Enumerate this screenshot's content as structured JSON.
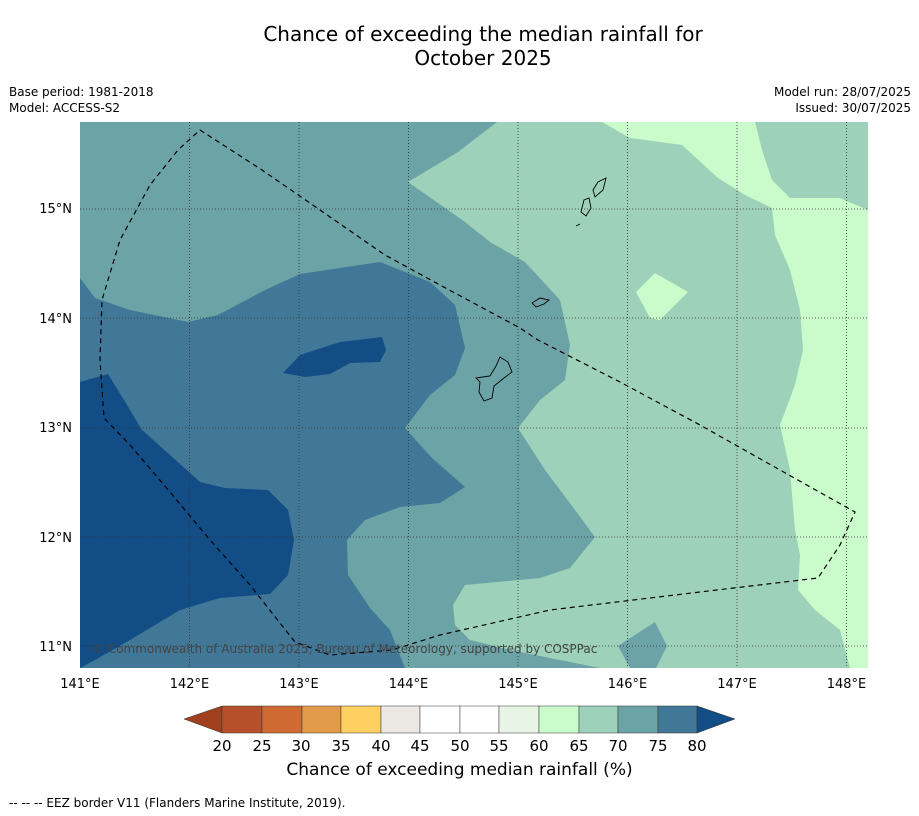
{
  "title_line1": "Chance of exceeding the median rainfall for",
  "title_line2": "October 2025",
  "meta_left": {
    "base_period": "Base period: 1981-2018",
    "model": "Model: ACCESS-S2"
  },
  "meta_right": {
    "model_run": "Model run: 28/07/2025",
    "issued": "Issued: 30/07/2025"
  },
  "map": {
    "lon_ticks": [
      "141°E",
      "142°E",
      "143°E",
      "144°E",
      "145°E",
      "146°E",
      "147°E",
      "148°E"
    ],
    "lat_ticks": [
      "15°N",
      "14°N",
      "13°N",
      "12°N",
      "11°N"
    ],
    "copyright": "© Commonwealth of Australia 2025, Bureau of Meteorology, supported by COSPPac"
  },
  "colorbar": {
    "title": "Chance of exceeding median rainfall (%)",
    "ticks": [
      "20",
      "25",
      "30",
      "35",
      "40",
      "45",
      "50",
      "55",
      "60",
      "65",
      "70",
      "75",
      "80"
    ],
    "colors": {
      "below20": "#a0401f",
      "c20_25": "#b5502a",
      "c25_30": "#d06a33",
      "c30_35": "#e39a4a",
      "c35_40": "#fdd060",
      "c40_45": "#ece8e4",
      "c45_55": "#ffffff",
      "c55_60": "#e8f5e6",
      "c60_65": "#c9fbcb",
      "c65_70": "#9dd1b9",
      "c70_75": "#6ca3a6",
      "c75_80": "#427897",
      "above80": "#134d86"
    }
  },
  "footer": "--  --  -- EEZ border V11 (Flanders Marine Institute, 2019)."
}
